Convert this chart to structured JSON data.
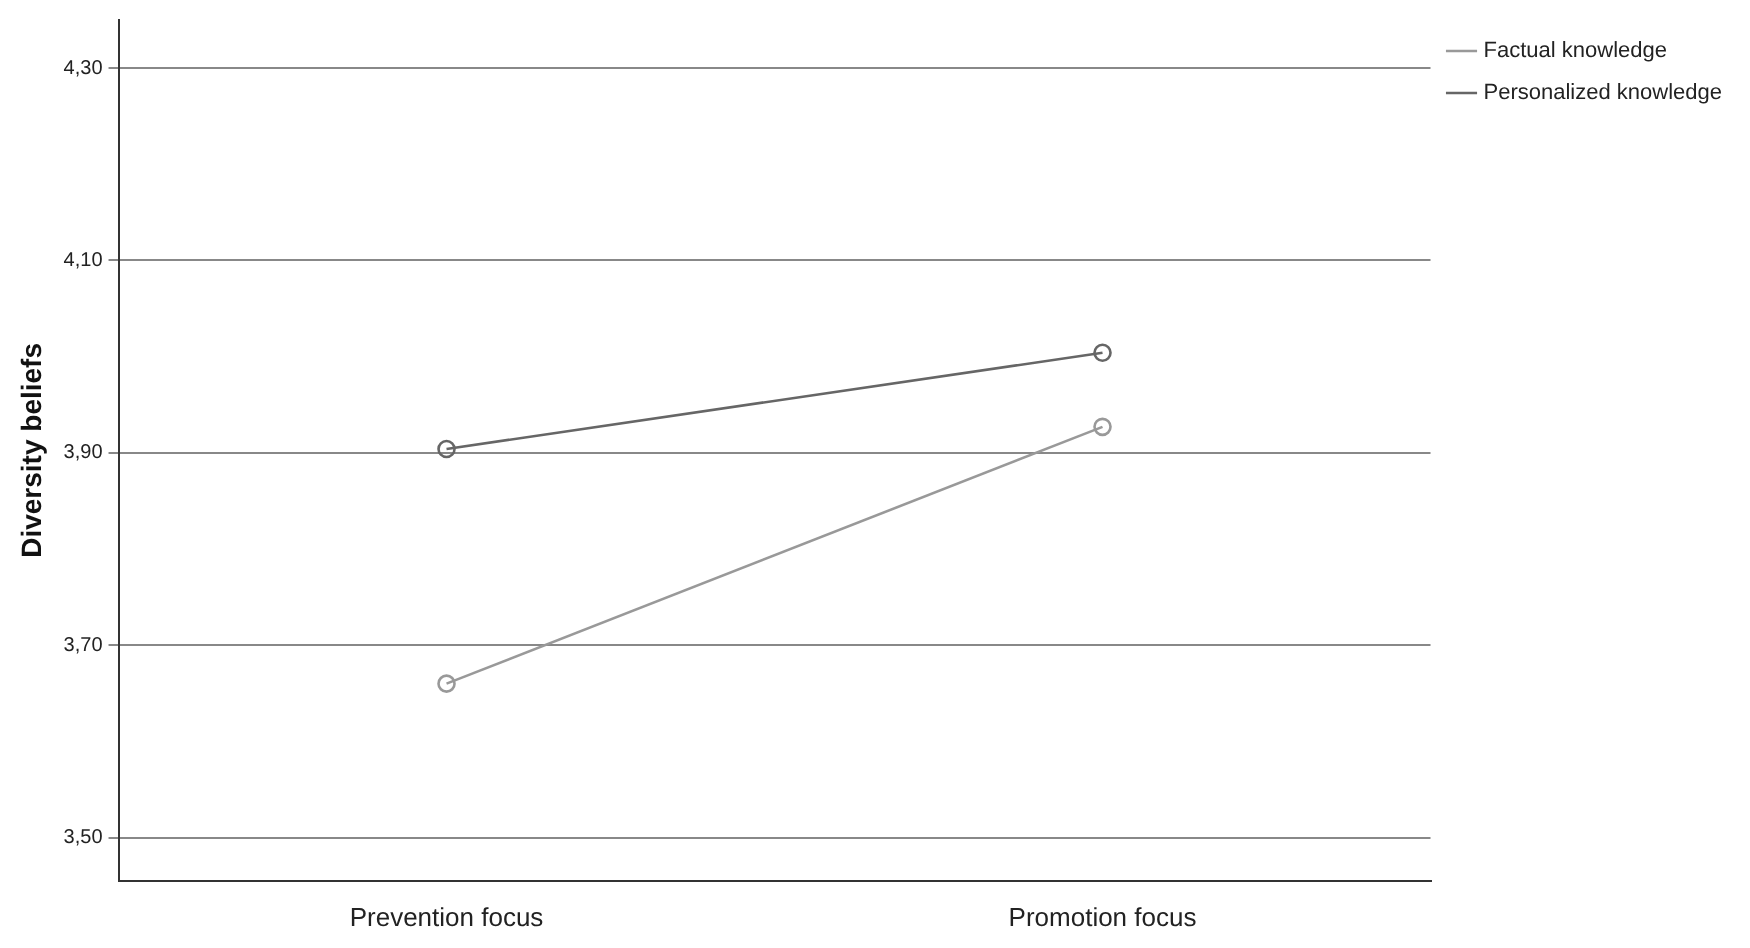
{
  "chart_data": {
    "type": "line",
    "ylabel": "Diversity beliefs",
    "categories": [
      "Prevention focus",
      "Promotion focus"
    ],
    "series": [
      {
        "name": "Factual knowledge",
        "color": "#999999",
        "values": [
          3.66,
          3.927
        ]
      },
      {
        "name": "Personalized knowledge",
        "color": "#666666",
        "values": [
          3.904,
          4.004
        ]
      }
    ],
    "ylim": [
      3.455,
      4.35
    ],
    "yticks": [
      {
        "value": 3.5,
        "label": "3,50"
      },
      {
        "value": 3.7,
        "label": "3,70"
      },
      {
        "value": 3.9,
        "label": "3,90"
      },
      {
        "value": 4.1,
        "label": "4,10"
      },
      {
        "value": 4.3,
        "label": "4,30"
      }
    ],
    "grid": "y",
    "legend": "top right",
    "marker": "circle",
    "line_style": "solid"
  }
}
